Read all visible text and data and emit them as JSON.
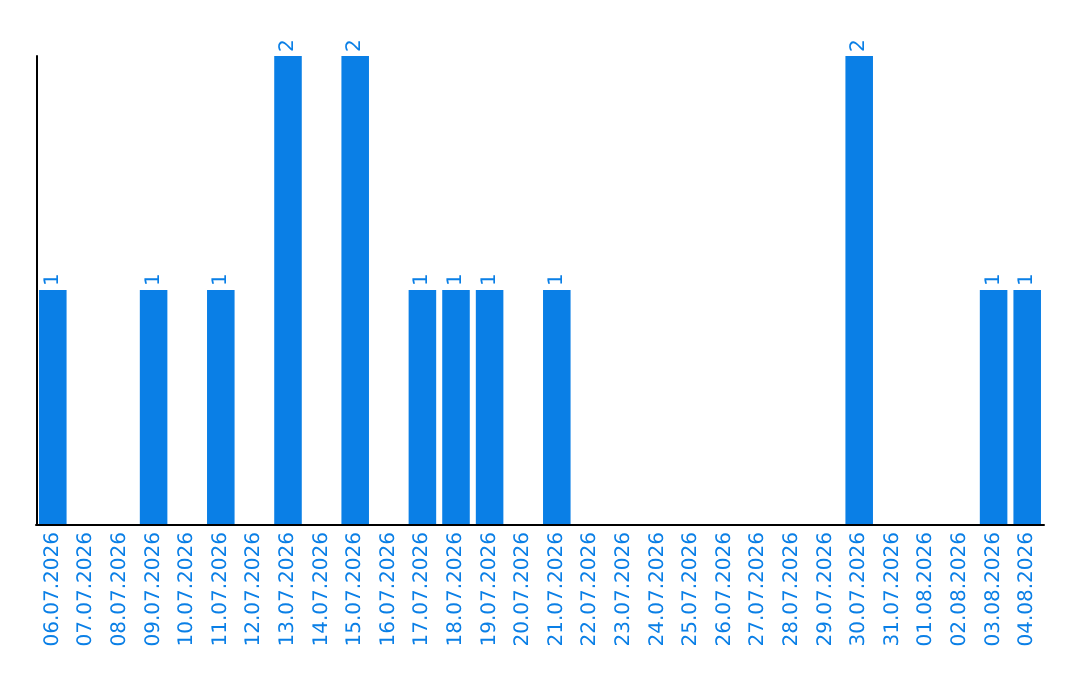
{
  "chart_data": {
    "type": "bar",
    "categories": [
      "06.07.2026",
      "07.07.2026",
      "08.07.2026",
      "09.07.2026",
      "10.07.2026",
      "11.07.2026",
      "12.07.2026",
      "13.07.2026",
      "14.07.2026",
      "15.07.2026",
      "16.07.2026",
      "17.07.2026",
      "18.07.2026",
      "19.07.2026",
      "20.07.2026",
      "21.07.2026",
      "22.07.2026",
      "23.07.2026",
      "24.07.2026",
      "25.07.2026",
      "26.07.2026",
      "27.07.2026",
      "28.07.2026",
      "29.07.2026",
      "30.07.2026",
      "31.07.2026",
      "01.08.2026",
      "02.08.2026",
      "03.08.2026",
      "04.08.2026"
    ],
    "values": [
      1,
      0,
      0,
      1,
      0,
      1,
      0,
      2,
      0,
      2,
      0,
      1,
      1,
      1,
      0,
      1,
      0,
      0,
      0,
      0,
      0,
      0,
      0,
      0,
      2,
      0,
      0,
      0,
      1,
      1
    ],
    "value_labels": [
      "1",
      null,
      null,
      "1",
      null,
      "1",
      null,
      "2",
      null,
      "2",
      null,
      "1",
      "1",
      "1",
      null,
      "1",
      null,
      null,
      null,
      null,
      null,
      null,
      null,
      null,
      "2",
      null,
      null,
      null,
      "1",
      "1"
    ],
    "color": "#0a7fe6",
    "ylim": [
      0,
      2
    ],
    "tick_labels": "x",
    "grid": false
  }
}
